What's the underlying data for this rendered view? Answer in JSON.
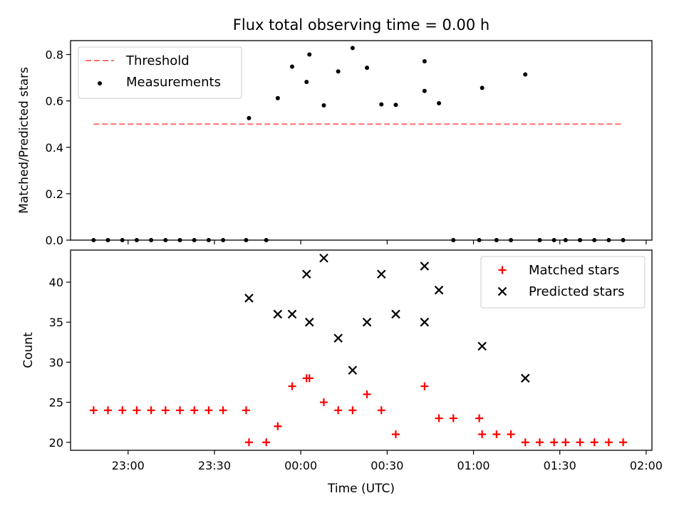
{
  "chart_data": [
    {
      "type": "scatter",
      "title": "Flux total observing time = 0.00 h",
      "xlabel": "",
      "ylabel": "Matched/Predicted stars",
      "xlim": [
        "22:40",
        "02:02"
      ],
      "ylim": [
        0.0,
        0.86
      ],
      "yticks": [
        "0.0",
        "0.2",
        "0.4",
        "0.6",
        "0.8"
      ],
      "grid": false,
      "legend_position": "top-left",
      "threshold": {
        "name": "Threshold",
        "value": 0.5,
        "x_start": "22:48",
        "x_end": "01:52",
        "color": "#ff7070",
        "style": "dashed"
      },
      "series": [
        {
          "name": "Measurements",
          "color": "#000000",
          "marker": "dot",
          "points": [
            [
              "22:48",
              0.0
            ],
            [
              "22:53",
              0.0
            ],
            [
              "22:58",
              0.0
            ],
            [
              "23:03",
              0.0
            ],
            [
              "23:08",
              0.0
            ],
            [
              "23:13",
              0.0
            ],
            [
              "23:18",
              0.0
            ],
            [
              "23:23",
              0.0
            ],
            [
              "23:28",
              0.0
            ],
            [
              "23:33",
              0.0
            ],
            [
              "23:41",
              0.0
            ],
            [
              "23:42",
              0.526
            ],
            [
              "23:48",
              0.0
            ],
            [
              "23:52",
              0.612
            ],
            [
              "23:57",
              0.748
            ],
            [
              "00:02",
              0.682
            ],
            [
              "00:03",
              0.8
            ],
            [
              "00:08",
              0.581
            ],
            [
              "00:13",
              0.727
            ],
            [
              "00:18",
              0.828
            ],
            [
              "00:23",
              0.743
            ],
            [
              "00:28",
              0.585
            ],
            [
              "00:33",
              0.583
            ],
            [
              "00:43",
              0.771
            ],
            [
              "00:43",
              0.643
            ],
            [
              "00:48",
              0.59
            ],
            [
              "00:53",
              0.0
            ],
            [
              "01:02",
              0.0
            ],
            [
              "01:03",
              0.656
            ],
            [
              "01:08",
              0.0
            ],
            [
              "01:13",
              0.0
            ],
            [
              "01:18",
              0.714
            ],
            [
              "01:23",
              0.0
            ],
            [
              "01:28",
              0.0
            ],
            [
              "01:32",
              0.0
            ],
            [
              "01:37",
              0.0
            ],
            [
              "01:42",
              0.0
            ],
            [
              "01:47",
              0.0
            ],
            [
              "01:52",
              0.0
            ]
          ]
        }
      ]
    },
    {
      "type": "scatter",
      "title": "",
      "xlabel": "Time (UTC)",
      "ylabel": "Count",
      "xlim": [
        "22:40",
        "02:02"
      ],
      "ylim": [
        19.0,
        44.0
      ],
      "xticks": [
        "23:00",
        "23:30",
        "00:00",
        "00:30",
        "01:00",
        "01:30",
        "02:00"
      ],
      "yticks": [
        "20",
        "25",
        "30",
        "35",
        "40"
      ],
      "grid": false,
      "legend_position": "top-right",
      "series": [
        {
          "name": "Matched stars",
          "color": "#ff0000",
          "marker": "plus",
          "points": [
            [
              "22:48",
              24
            ],
            [
              "22:53",
              24
            ],
            [
              "22:58",
              24
            ],
            [
              "23:03",
              24
            ],
            [
              "23:08",
              24
            ],
            [
              "23:13",
              24
            ],
            [
              "23:18",
              24
            ],
            [
              "23:23",
              24
            ],
            [
              "23:28",
              24
            ],
            [
              "23:33",
              24
            ],
            [
              "23:41",
              24
            ],
            [
              "23:42",
              20
            ],
            [
              "23:48",
              20
            ],
            [
              "23:52",
              22
            ],
            [
              "23:57",
              27
            ],
            [
              "00:02",
              28
            ],
            [
              "00:03",
              28
            ],
            [
              "00:08",
              25
            ],
            [
              "00:13",
              24
            ],
            [
              "00:18",
              24
            ],
            [
              "00:23",
              26
            ],
            [
              "00:28",
              24
            ],
            [
              "00:33",
              21
            ],
            [
              "00:43",
              27
            ],
            [
              "00:48",
              23
            ],
            [
              "00:53",
              23
            ],
            [
              "01:02",
              23
            ],
            [
              "01:03",
              21
            ],
            [
              "01:08",
              21
            ],
            [
              "01:13",
              21
            ],
            [
              "01:18",
              20
            ],
            [
              "01:23",
              20
            ],
            [
              "01:28",
              20
            ],
            [
              "01:32",
              20
            ],
            [
              "01:37",
              20
            ],
            [
              "01:42",
              20
            ],
            [
              "01:47",
              20
            ],
            [
              "01:52",
              20
            ]
          ]
        },
        {
          "name": "Predicted stars",
          "color": "#000000",
          "marker": "x",
          "points": [
            [
              "23:42",
              38
            ],
            [
              "23:52",
              36
            ],
            [
              "23:57",
              36
            ],
            [
              "00:02",
              41
            ],
            [
              "00:03",
              35
            ],
            [
              "00:08",
              43
            ],
            [
              "00:13",
              33
            ],
            [
              "00:18",
              29
            ],
            [
              "00:23",
              35
            ],
            [
              "00:28",
              41
            ],
            [
              "00:33",
              36
            ],
            [
              "00:43",
              42
            ],
            [
              "00:43",
              35
            ],
            [
              "00:48",
              39
            ],
            [
              "01:03",
              32
            ],
            [
              "01:18",
              28
            ]
          ]
        }
      ]
    }
  ]
}
